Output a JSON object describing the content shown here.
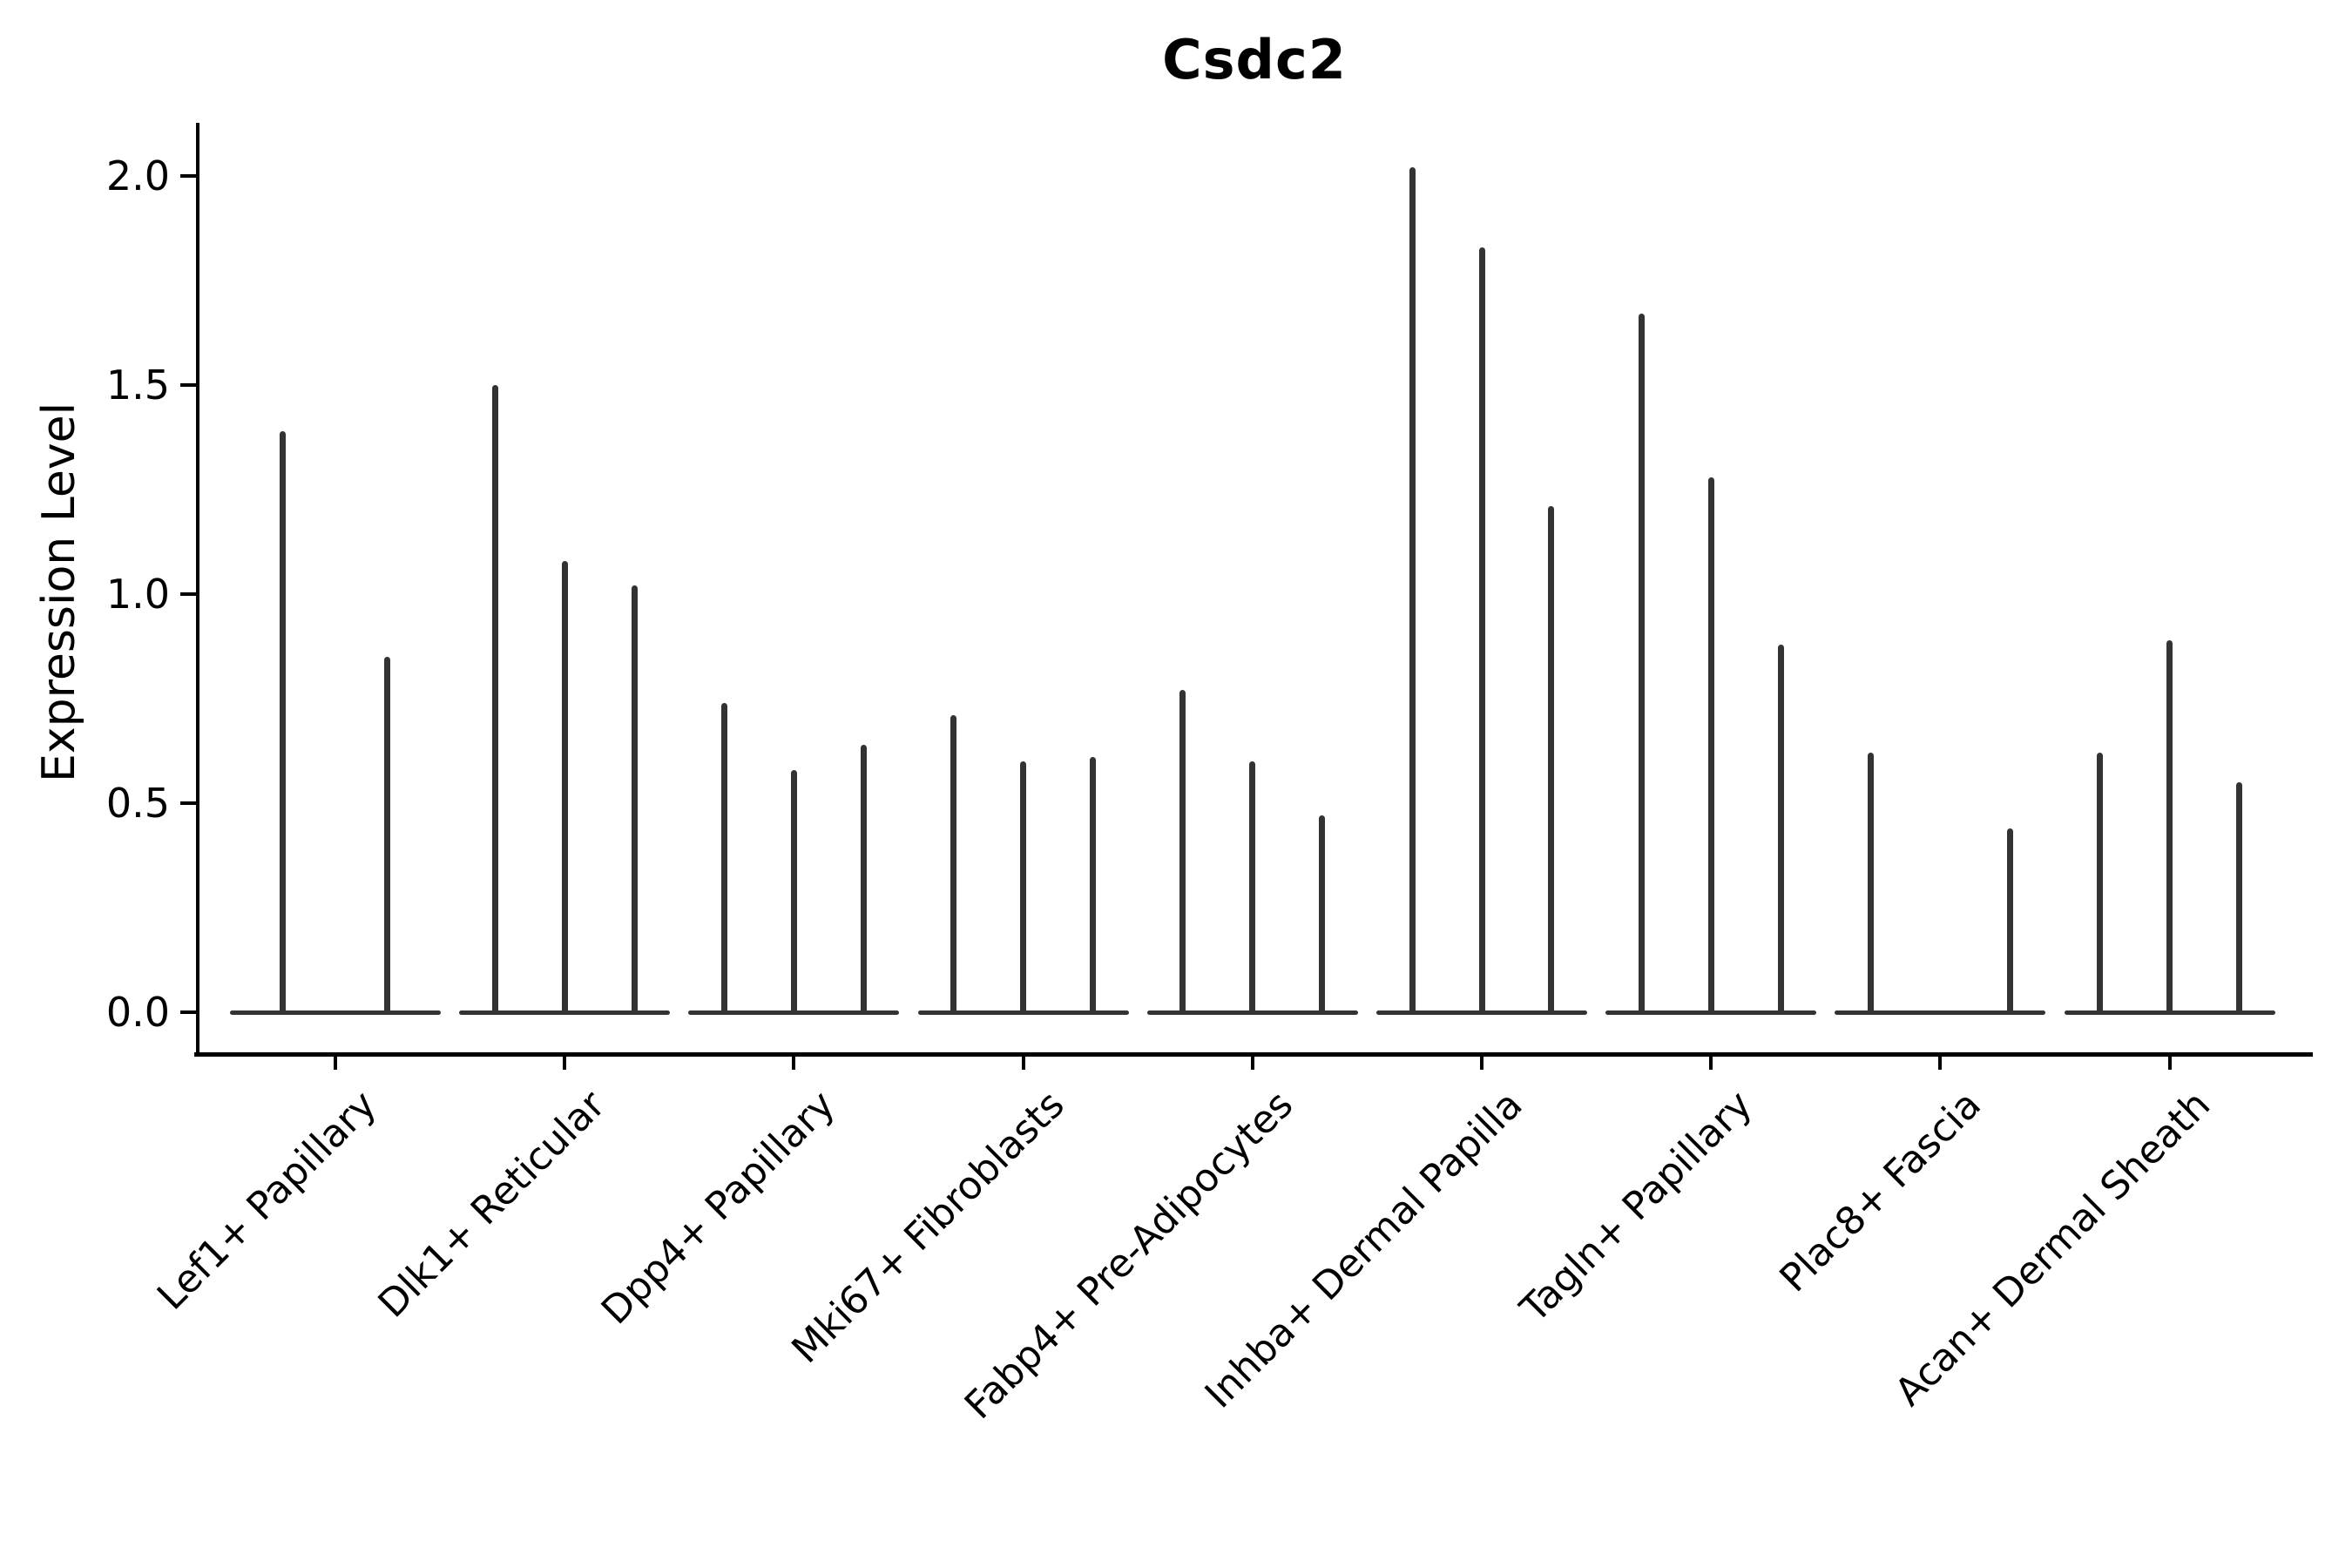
{
  "chart_data": {
    "type": "violin",
    "title": "Csdc2",
    "xlabel": "",
    "ylabel": "Expression Level",
    "ylim": [
      0,
      2.13
    ],
    "yticks": [
      {
        "value": 0.0,
        "label": "0.0"
      },
      {
        "value": 0.5,
        "label": "0.5"
      },
      {
        "value": 1.0,
        "label": "1.0"
      },
      {
        "value": 1.5,
        "label": "1.5"
      },
      {
        "value": 2.0,
        "label": "2.0"
      }
    ],
    "grid": false,
    "legend": "none",
    "line_color": "#333333",
    "axis_color": "#000000",
    "categories": [
      "Lef1+ Papillary",
      "Dlk1+ Reticular",
      "Dpp4+ Papillary",
      "Mki67+ Fibroblasts",
      "Fabp4+ Pre-Adipocytes",
      "Inhba+ Dermal Papilla",
      "Tagln+ Papillary",
      "Plac8+ Fascia",
      "Acan+ Dermal Sheath"
    ],
    "groups": [
      {
        "label": "Lef1+ Papillary",
        "violins": [
          {
            "pos": 0.25,
            "max": 1.39
          },
          {
            "pos": 0.745,
            "max": 0.85
          }
        ]
      },
      {
        "label": "Dlk1+ Reticular",
        "violins": [
          {
            "pos": 0.17,
            "max": 1.5
          },
          {
            "pos": 0.5,
            "max": 1.08
          },
          {
            "pos": 0.83,
            "max": 1.02
          }
        ]
      },
      {
        "label": "Dpp4+ Papillary",
        "violins": [
          {
            "pos": 0.17,
            "max": 0.74
          },
          {
            "pos": 0.5,
            "max": 0.58
          },
          {
            "pos": 0.83,
            "max": 0.64
          }
        ]
      },
      {
        "label": "Mki67+ Fibroblasts",
        "violins": [
          {
            "pos": 0.17,
            "max": 0.71
          },
          {
            "pos": 0.5,
            "max": 0.6
          },
          {
            "pos": 0.83,
            "max": 0.61
          }
        ]
      },
      {
        "label": "Fabp4+ Pre-Adipocytes",
        "violins": [
          {
            "pos": 0.17,
            "max": 0.77
          },
          {
            "pos": 0.5,
            "max": 0.6
          },
          {
            "pos": 0.83,
            "max": 0.47
          }
        ]
      },
      {
        "label": "Inhba+ Dermal Papilla",
        "violins": [
          {
            "pos": 0.17,
            "max": 2.02
          },
          {
            "pos": 0.5,
            "max": 1.83
          },
          {
            "pos": 0.83,
            "max": 1.21
          }
        ]
      },
      {
        "label": "Tagln+ Papillary",
        "violins": [
          {
            "pos": 0.17,
            "max": 1.67
          },
          {
            "pos": 0.5,
            "max": 1.28
          },
          {
            "pos": 0.83,
            "max": 0.88
          }
        ]
      },
      {
        "label": "Plac8+ Fascia",
        "violins": [
          {
            "pos": 0.17,
            "max": 0.62
          },
          {
            "pos": 0.83,
            "max": 0.44
          }
        ]
      },
      {
        "label": "Acan+ Dermal Sheath",
        "violins": [
          {
            "pos": 0.17,
            "max": 0.62
          },
          {
            "pos": 0.5,
            "max": 0.89
          },
          {
            "pos": 0.83,
            "max": 0.55
          }
        ]
      }
    ]
  }
}
